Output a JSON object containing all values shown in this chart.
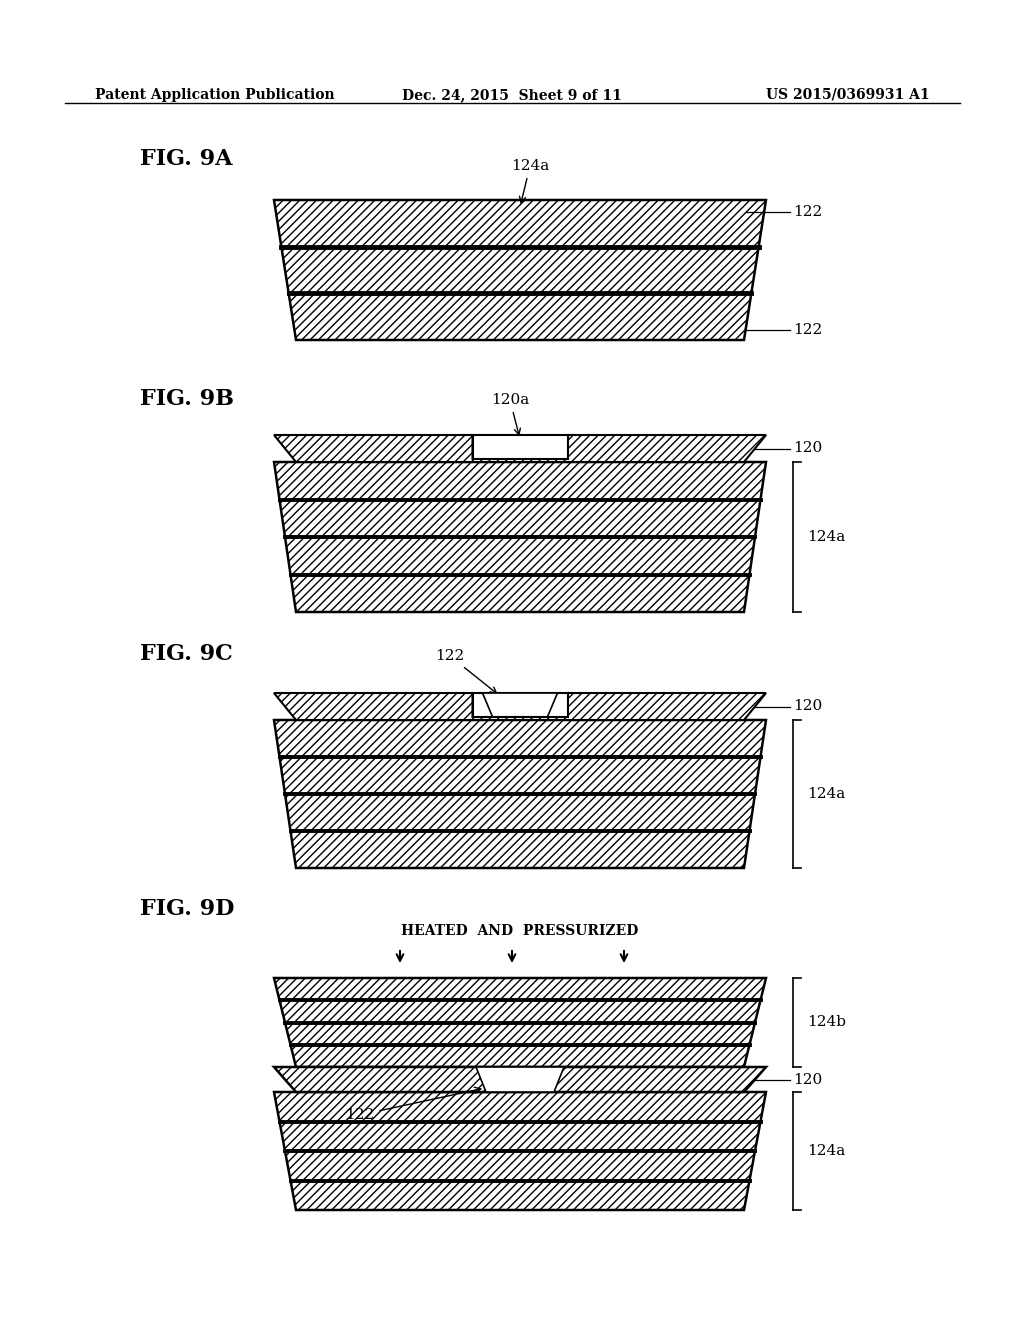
{
  "bg_color": "#ffffff",
  "header_left": "Patent Application Publication",
  "header_center": "Dec. 24, 2015  Sheet 9 of 11",
  "header_right": "US 2015/0369931 A1",
  "line_color": "#000000",
  "annotation_fontsize": 11,
  "fig_label_fontsize": 16
}
